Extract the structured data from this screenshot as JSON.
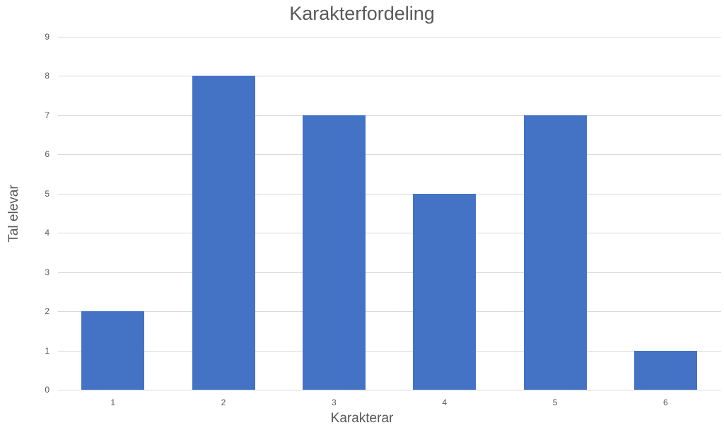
{
  "chart_data": {
    "type": "bar",
    "title": "Karakterfordeling",
    "xlabel": "Karakterar",
    "ylabel": "Tal elevar",
    "categories": [
      "1",
      "2",
      "3",
      "4",
      "5",
      "6"
    ],
    "values": [
      2,
      8,
      7,
      5,
      7,
      1
    ],
    "ylim": [
      0,
      9
    ],
    "yticks": [
      "0",
      "1",
      "2",
      "3",
      "4",
      "5",
      "6",
      "7",
      "8",
      "9"
    ],
    "grid": true,
    "legend": null,
    "bar_color": "#4472C4"
  }
}
